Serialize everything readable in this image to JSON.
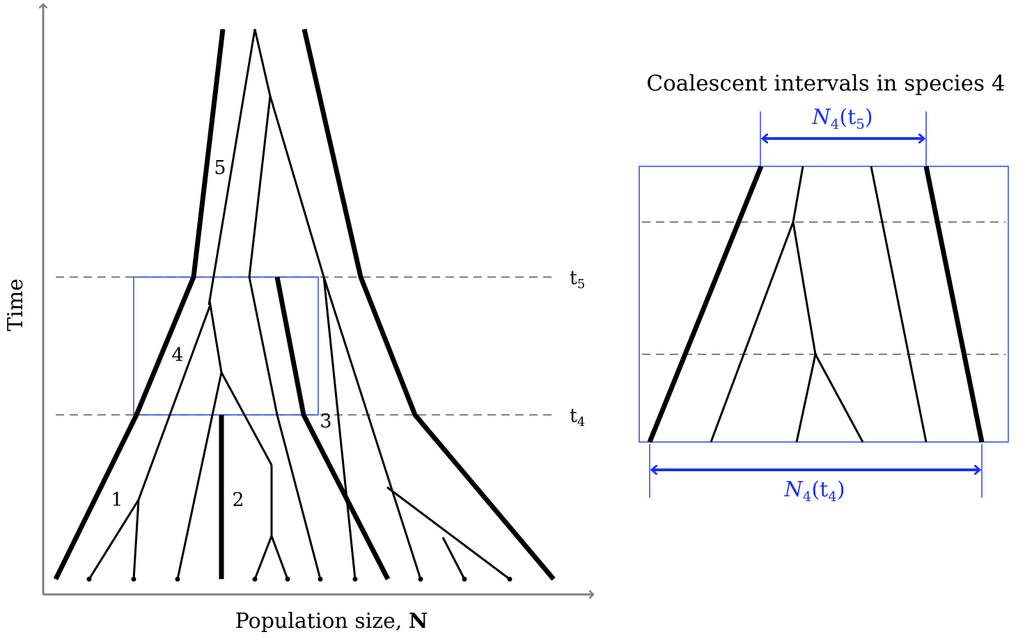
{
  "axes": {
    "y_label": "Time",
    "x_label": "Population size, ",
    "x_label_bold": "N"
  },
  "time_marks": {
    "t5": {
      "base": "t",
      "sub": "5"
    },
    "t4": {
      "base": "t",
      "sub": "4"
    }
  },
  "species_labels": [
    "1",
    "2",
    "3",
    "4",
    "5"
  ],
  "inset": {
    "title": "Coalescent intervals in species 4",
    "top_width": {
      "base": "N",
      "sub": "4",
      "arg": "t",
      "arg_sub": "5"
    },
    "bottom_width": {
      "base": "N",
      "sub": "4",
      "arg": "t",
      "arg_sub": "4"
    }
  },
  "colors": {
    "tree": "#000000",
    "axis": "#808080",
    "highlight": "#1a33ee"
  }
}
